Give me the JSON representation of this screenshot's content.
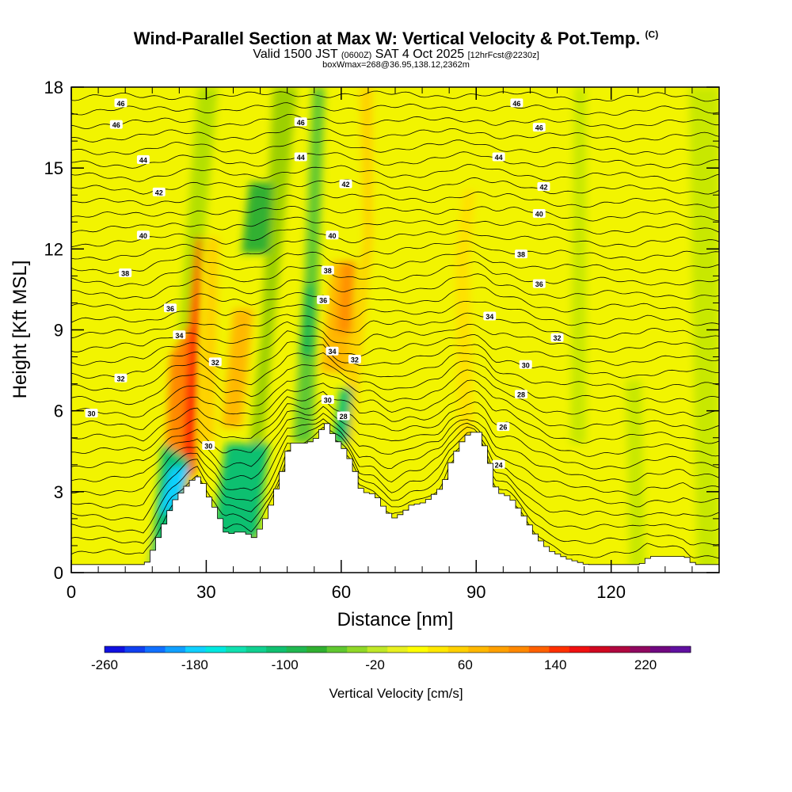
{
  "header": {
    "title": "Wind-Parallel Section at Max W: Vertical Velocity & Pot.Temp.",
    "copyright": "(C)",
    "valid_prefix": "Valid 1500 JST",
    "valid_utc": "(0600Z)",
    "valid_date": "SAT 4 Oct 2025",
    "forecast": "[12hrFcst@2230z]",
    "box_info": "boxWmax=268@36.95,138.12,2362m"
  },
  "chart_data": {
    "type": "heatmap",
    "title": "Wind-Parallel Section at Max W: Vertical Velocity & Pot.Temp.",
    "xlabel": "Distance [nm]",
    "ylabel": "Height [Kft MSL]",
    "xlim": [
      0,
      144
    ],
    "ylim": [
      0,
      18
    ],
    "x_ticks": [
      0,
      30,
      60,
      90,
      120
    ],
    "y_ticks": [
      0,
      3,
      6,
      9,
      12,
      15,
      18
    ],
    "terrain": [
      [
        0,
        0.3
      ],
      [
        16,
        0.3
      ],
      [
        18,
        1
      ],
      [
        20,
        1.8
      ],
      [
        22,
        2.6
      ],
      [
        24,
        3
      ],
      [
        26,
        3.4
      ],
      [
        28,
        3.6
      ],
      [
        29,
        3.2
      ],
      [
        30,
        2.8
      ],
      [
        32,
        2.2
      ],
      [
        33,
        1.8
      ],
      [
        34,
        1.4
      ],
      [
        36,
        1.5
      ],
      [
        38,
        1.5
      ],
      [
        40,
        1.3
      ],
      [
        42,
        1.8
      ],
      [
        44,
        2.6
      ],
      [
        46,
        3.6
      ],
      [
        48,
        4.8
      ],
      [
        52,
        4.8
      ],
      [
        54,
        5
      ],
      [
        56,
        5.6
      ],
      [
        58,
        5
      ],
      [
        60,
        4.6
      ],
      [
        62,
        4
      ],
      [
        64,
        3
      ],
      [
        67,
        2.9
      ],
      [
        69,
        2.4
      ],
      [
        71,
        2
      ],
      [
        73,
        2.2
      ],
      [
        75,
        2.5
      ],
      [
        78,
        2.6
      ],
      [
        80,
        2.9
      ],
      [
        82,
        3.2
      ],
      [
        84,
        4.2
      ],
      [
        86,
        4.8
      ],
      [
        88,
        5.2
      ],
      [
        90,
        5.2
      ],
      [
        92,
        4.4
      ],
      [
        94,
        3
      ],
      [
        97,
        2.8
      ],
      [
        100,
        2.1
      ],
      [
        103,
        1.3
      ],
      [
        106,
        0.8
      ],
      [
        110,
        0.5
      ],
      [
        114,
        0.3
      ],
      [
        126,
        0.3
      ],
      [
        128,
        0.6
      ],
      [
        136,
        0.6
      ],
      [
        138,
        0.3
      ],
      [
        144,
        0.3
      ]
    ],
    "theta_labels": [
      {
        "x": 11,
        "y": 17.4,
        "text": "46"
      },
      {
        "x": 10,
        "y": 16.6,
        "text": "46"
      },
      {
        "x": 16,
        "y": 15.3,
        "text": "44"
      },
      {
        "x": 19.5,
        "y": 14.1,
        "text": "42"
      },
      {
        "x": 16,
        "y": 12.5,
        "text": "40"
      },
      {
        "x": 12,
        "y": 11.1,
        "text": "38"
      },
      {
        "x": 22,
        "y": 9.8,
        "text": "36"
      },
      {
        "x": 24,
        "y": 8.8,
        "text": "34"
      },
      {
        "x": 32,
        "y": 7.8,
        "text": "32"
      },
      {
        "x": 11,
        "y": 7.2,
        "text": "32"
      },
      {
        "x": 4.5,
        "y": 5.9,
        "text": "30"
      },
      {
        "x": 30.5,
        "y": 4.7,
        "text": "30"
      },
      {
        "x": 51,
        "y": 16.7,
        "text": "46"
      },
      {
        "x": 51,
        "y": 15.4,
        "text": "44"
      },
      {
        "x": 61,
        "y": 14.4,
        "text": "42"
      },
      {
        "x": 58,
        "y": 12.5,
        "text": "40"
      },
      {
        "x": 57,
        "y": 11.2,
        "text": "38"
      },
      {
        "x": 56,
        "y": 10.1,
        "text": "36"
      },
      {
        "x": 58,
        "y": 8.2,
        "text": "34"
      },
      {
        "x": 63,
        "y": 7.9,
        "text": "32"
      },
      {
        "x": 57,
        "y": 6.4,
        "text": "30"
      },
      {
        "x": 60.5,
        "y": 5.8,
        "text": "28"
      },
      {
        "x": 99,
        "y": 17.4,
        "text": "46"
      },
      {
        "x": 104,
        "y": 16.5,
        "text": "46"
      },
      {
        "x": 95,
        "y": 15.4,
        "text": "44"
      },
      {
        "x": 105,
        "y": 14.3,
        "text": "42"
      },
      {
        "x": 104,
        "y": 13.3,
        "text": "40"
      },
      {
        "x": 100,
        "y": 11.8,
        "text": "38"
      },
      {
        "x": 104,
        "y": 10.7,
        "text": "36"
      },
      {
        "x": 93,
        "y": 9.5,
        "text": "34"
      },
      {
        "x": 108,
        "y": 8.7,
        "text": "32"
      },
      {
        "x": 101,
        "y": 7.7,
        "text": "30"
      },
      {
        "x": 100,
        "y": 6.6,
        "text": "28"
      },
      {
        "x": 96,
        "y": 5.4,
        "text": "26"
      },
      {
        "x": 95,
        "y": 4,
        "text": "24"
      }
    ],
    "colorbar": {
      "title": "Vertical Velocity [cm/s]",
      "min": -260,
      "max": 260,
      "step": 20,
      "tick_labels": [
        "-260",
        "-180",
        "-100",
        "-20",
        "60",
        "140",
        "220"
      ],
      "colors": [
        "#1010e0",
        "#1040f0",
        "#1070ff",
        "#10a0ff",
        "#10d0ff",
        "#00e8e0",
        "#10e0b0",
        "#10d090",
        "#10c070",
        "#20b850",
        "#30b030",
        "#60c830",
        "#90d828",
        "#c0e828",
        "#e8f020",
        "#ffff00",
        "#ffe800",
        "#ffd000",
        "#ffb800",
        "#ffa000",
        "#ff8800",
        "#ff6000",
        "#ff3000",
        "#f01010",
        "#d00820",
        "#b00840",
        "#900860",
        "#700880",
        "#6010a0"
      ]
    }
  }
}
